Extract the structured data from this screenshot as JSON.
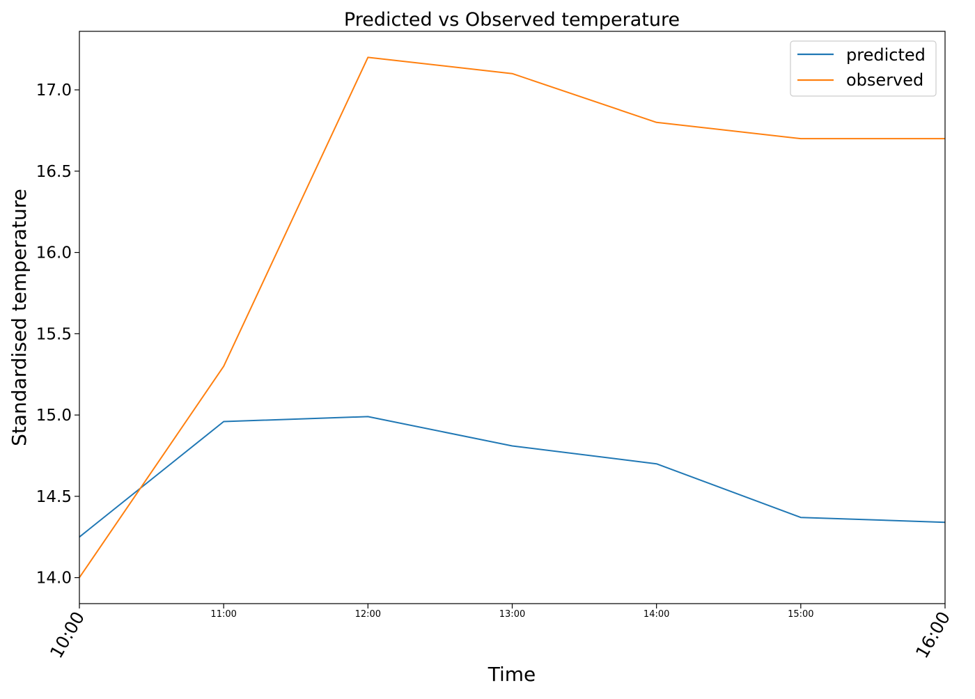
{
  "chart_data": {
    "type": "line",
    "title": "Predicted vs Observed temperature",
    "xlabel": "Time",
    "ylabel": "Standardised temperature",
    "categories": [
      "10:00",
      "11:00",
      "12:00",
      "13:00",
      "14:00",
      "15:00",
      "16:00"
    ],
    "series": [
      {
        "name": "predicted",
        "color": "#1f77b4",
        "values": [
          14.25,
          14.96,
          14.99,
          14.81,
          14.7,
          14.37,
          14.34
        ]
      },
      {
        "name": "observed",
        "color": "#ff7f0e",
        "values": [
          14.0,
          15.3,
          17.2,
          17.1,
          16.8,
          16.7,
          16.7
        ]
      }
    ],
    "ylim": [
      13.84,
      17.36
    ],
    "yticks": [
      "14.0",
      "14.5",
      "15.0",
      "15.5",
      "16.0",
      "16.5",
      "17.0"
    ],
    "grid": false,
    "legend_position": "top-right"
  }
}
